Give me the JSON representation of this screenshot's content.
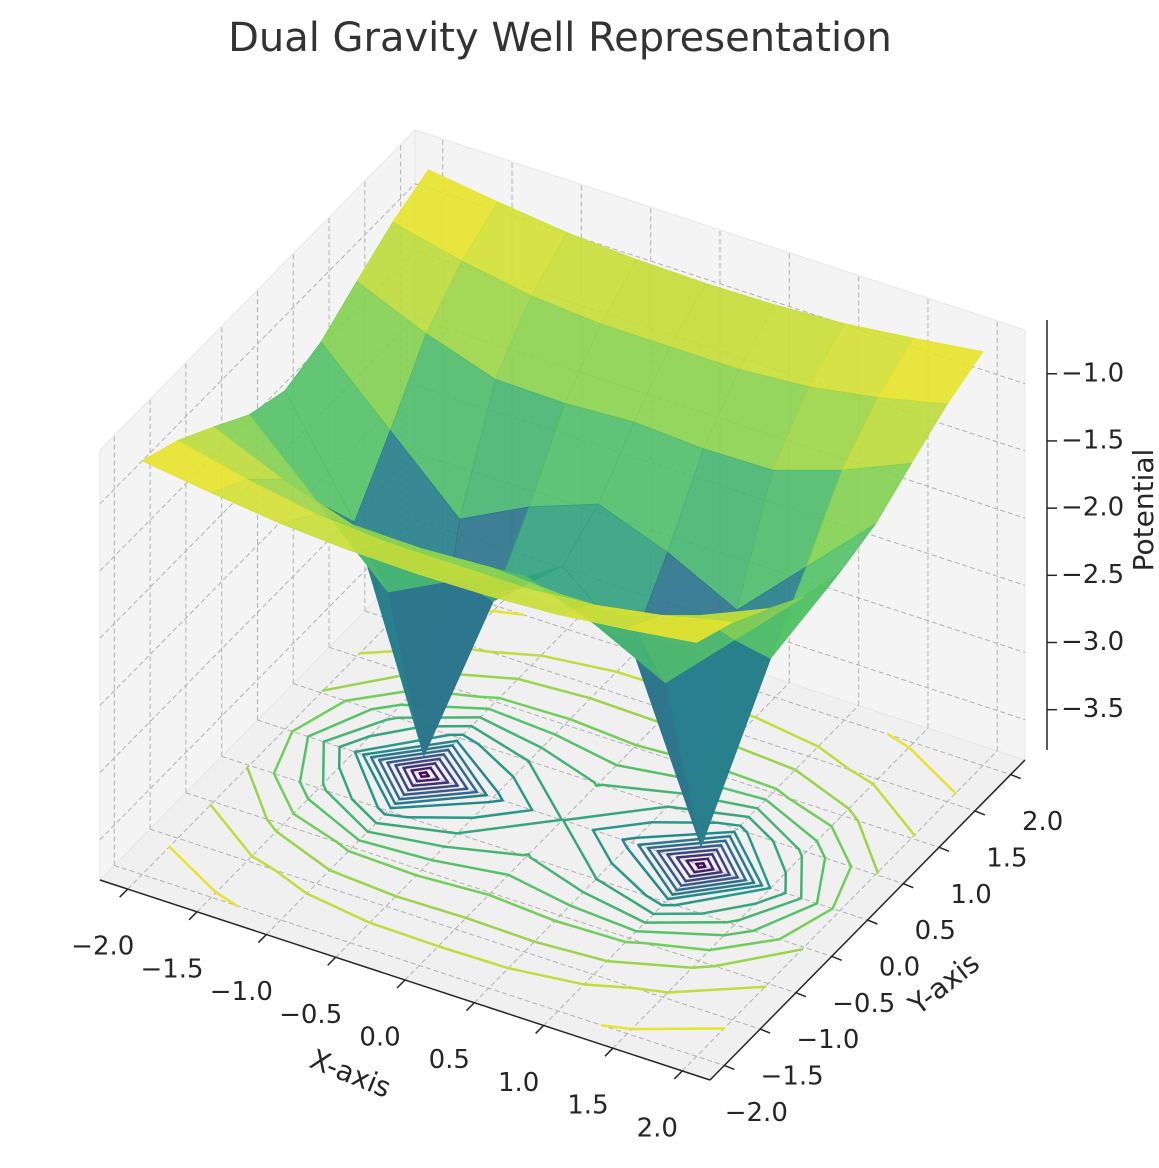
{
  "chart_data": {
    "type": "surface3d",
    "title": "Dual Gravity Well Representation",
    "xlabel": "X-axis",
    "ylabel": "Y-axis",
    "zlabel": "Potential",
    "colormap": "viridis",
    "grid": true,
    "contour_floor": true,
    "x": [
      -2,
      -1.5,
      -1,
      -0.5,
      0,
      0.5,
      1,
      1.5,
      2
    ],
    "y": [
      -2,
      -1.5,
      -1,
      -0.5,
      0,
      0.5,
      1,
      1.5,
      2
    ],
    "z": [
      [
        -0.72,
        -0.79,
        -0.85,
        -0.88,
        -0.89,
        -0.88,
        -0.85,
        -0.79,
        -0.72
      ],
      [
        -0.84,
        -0.96,
        -1.05,
        -1.09,
        -1.09,
        -1.09,
        -1.05,
        -0.96,
        -0.84
      ],
      [
        -1.01,
        -1.23,
        -1.4,
        -1.41,
        -1.38,
        -1.41,
        -1.4,
        -1.23,
        -1.01
      ],
      [
        -1.19,
        -1.68,
        -2.17,
        -1.91,
        -1.72,
        -1.91,
        -2.17,
        -1.68,
        -1.19
      ],
      [
        -1.28,
        -2.09,
        -3.66,
        -2.34,
        -1.91,
        -2.34,
        -3.66,
        -2.09,
        -1.28
      ],
      [
        -1.19,
        -1.68,
        -2.17,
        -1.91,
        -1.72,
        -1.91,
        -2.17,
        -1.68,
        -1.19
      ],
      [
        -1.01,
        -1.23,
        -1.4,
        -1.41,
        -1.38,
        -1.41,
        -1.4,
        -1.23,
        -1.01
      ],
      [
        -0.84,
        -0.96,
        -1.05,
        -1.09,
        -1.09,
        -1.09,
        -1.05,
        -0.96,
        -0.84
      ],
      [
        -0.72,
        -0.79,
        -0.85,
        -0.88,
        -0.89,
        -0.88,
        -0.85,
        -0.79,
        -0.72
      ]
    ],
    "xlim": [
      -2.2,
      2.2
    ],
    "ylim": [
      -2.2,
      2.2
    ],
    "zlim": [
      -3.8,
      -0.6
    ],
    "xticks": [
      {
        "value": -2,
        "label": "−2.0"
      },
      {
        "value": -1.5,
        "label": "−1.5"
      },
      {
        "value": -1,
        "label": "−1.0"
      },
      {
        "value": -0.5,
        "label": "−0.5"
      },
      {
        "value": 0,
        "label": "0.0"
      },
      {
        "value": 0.5,
        "label": "0.5"
      },
      {
        "value": 1,
        "label": "1.0"
      },
      {
        "value": 1.5,
        "label": "1.5"
      },
      {
        "value": 2,
        "label": "2.0"
      }
    ],
    "yticks": [
      {
        "value": -2,
        "label": "−2.0"
      },
      {
        "value": -1.5,
        "label": "−1.5"
      },
      {
        "value": -1,
        "label": "−1.0"
      },
      {
        "value": -0.5,
        "label": "−0.5"
      },
      {
        "value": 0,
        "label": "0.0"
      },
      {
        "value": 0.5,
        "label": "0.5"
      },
      {
        "value": 1,
        "label": "1.0"
      },
      {
        "value": 1.5,
        "label": "1.5"
      },
      {
        "value": 2,
        "label": "2.0"
      }
    ],
    "zticks": [
      {
        "value": -3.5,
        "label": "−3.5"
      },
      {
        "value": -3,
        "label": "−3.0"
      },
      {
        "value": -2.5,
        "label": "−2.5"
      },
      {
        "value": -2,
        "label": "−2.0"
      },
      {
        "value": -1.5,
        "label": "−1.5"
      },
      {
        "value": -1,
        "label": "−1.0"
      }
    ]
  }
}
